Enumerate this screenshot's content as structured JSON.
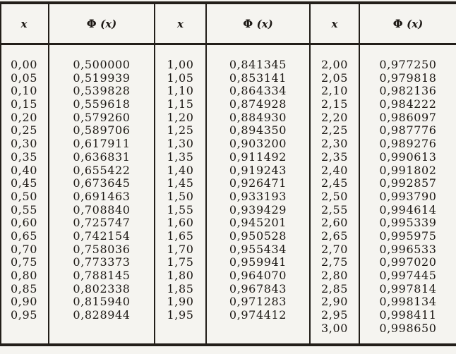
{
  "page": {
    "description": "Table of values of the standard normal distribution function",
    "colors": {
      "paper": "#f5f4f0",
      "ink": "#1d1915",
      "rule": "#221e19"
    }
  },
  "table": {
    "headers": [
      {
        "kind": "x",
        "label": "x"
      },
      {
        "kind": "phi",
        "symbol": "Φ",
        "arg": "(x)"
      },
      {
        "kind": "x",
        "label": "x"
      },
      {
        "kind": "phi",
        "symbol": "Φ",
        "arg": "(x)"
      },
      {
        "kind": "x",
        "label": "x"
      },
      {
        "kind": "phi",
        "symbol": "Φ",
        "arg": "(x)"
      }
    ],
    "rows": [
      [
        "0,00",
        "0,500000",
        "1,00",
        "0,841345",
        "2,00",
        "0,977250"
      ],
      [
        "0,05",
        "0,519939",
        "1,05",
        "0,853141",
        "2,05",
        "0,979818"
      ],
      [
        "0,10",
        "0,539828",
        "1,10",
        "0,864334",
        "2,10",
        "0,982136"
      ],
      [
        "0,15",
        "0,559618",
        "1,15",
        "0,874928",
        "2,15",
        "0,984222"
      ],
      [
        "0,20",
        "0,579260",
        "1,20",
        "0,884930",
        "2,20",
        "0,986097"
      ],
      [
        "0,25",
        "0,589706",
        "1,25",
        "0,894350",
        "2,25",
        "0,987776"
      ],
      [
        "0,30",
        "0,617911",
        "1,30",
        "0,903200",
        "2,30",
        "0,989276"
      ],
      [
        "0,35",
        "0,636831",
        "1,35",
        "0,911492",
        "2,35",
        "0,990613"
      ],
      [
        "0,40",
        "0,655422",
        "1,40",
        "0,919243",
        "2,40",
        "0,991802"
      ],
      [
        "0,45",
        "0,673645",
        "1,45",
        "0,926471",
        "2,45",
        "0,992857"
      ],
      [
        "0,50",
        "0,691463",
        "1,50",
        "0,933193",
        "2,50",
        "0,993790"
      ],
      [
        "0,55",
        "0,708840",
        "1,55",
        "0,939429",
        "2,55",
        "0,994614"
      ],
      [
        "0,60",
        "0,725747",
        "1,60",
        "0,945201",
        "2,60",
        "0,995339"
      ],
      [
        "0,65",
        "0,742154",
        "1,65",
        "0,950528",
        "2,65",
        "0,995975"
      ],
      [
        "0,70",
        "0,758036",
        "1,70",
        "0,955434",
        "2,70",
        "0,996533"
      ],
      [
        "0,75",
        "0,773373",
        "1,75",
        "0,959941",
        "2,75",
        "0,997020"
      ],
      [
        "0,80",
        "0,788145",
        "1,80",
        "0,964070",
        "2,80",
        "0,997445"
      ],
      [
        "0,85",
        "0,802338",
        "1,85",
        "0,967843",
        "2,85",
        "0,997814"
      ],
      [
        "0,90",
        "0,815940",
        "1,90",
        "0,971283",
        "2,90",
        "0,998134"
      ],
      [
        "0,95",
        "0,828944",
        "1,95",
        "0,974412",
        "2,95",
        "0,998411"
      ],
      [
        "",
        "",
        "",
        "",
        "3,00",
        "0,998650"
      ]
    ]
  }
}
